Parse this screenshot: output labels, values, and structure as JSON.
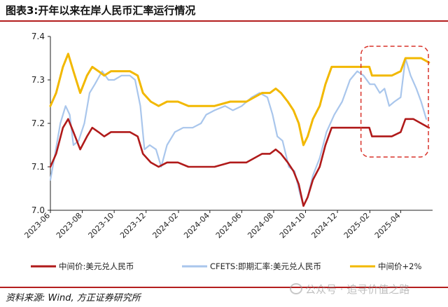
{
  "header": {
    "title": "图表3:开年以来在岸人民币汇率运行情况"
  },
  "footer": {
    "source": "资料来源: Wind, 方正证券研究所",
    "watermark": "公众号 · 追寻价值之路"
  },
  "colors": {
    "midpoint": "#b01a1a",
    "cfets": "#a9c6ec",
    "band": "#f2b800",
    "highlight": "#d9342b"
  },
  "chart_data": {
    "type": "line",
    "title": "",
    "xlabel": "",
    "ylabel": "",
    "ylim": [
      7.0,
      7.4
    ],
    "yticks": [
      "7.0",
      "7.1",
      "7.2",
      "7.3",
      "7.4"
    ],
    "xticks": [
      "2023-06",
      "2023-08",
      "2023-10",
      "2023-12",
      "2024-02",
      "2024-04",
      "2024-06",
      "2024-08",
      "2024-10",
      "2024-12",
      "2025-02",
      "2025-04"
    ],
    "grid": false,
    "legend_position": "bottom",
    "highlight_box": {
      "x_range": [
        "2025-01",
        "2025-06"
      ],
      "style": "dashed"
    },
    "series": [
      {
        "name": "中间价:美元兑人民币",
        "color": "#b01a1a",
        "points": [
          [
            "2023-06-01",
            7.1
          ],
          [
            "2023-06-12",
            7.13
          ],
          [
            "2023-06-25",
            7.19
          ],
          [
            "2023-07-05",
            7.21
          ],
          [
            "2023-07-15",
            7.18
          ],
          [
            "2023-07-28",
            7.14
          ],
          [
            "2023-08-10",
            7.17
          ],
          [
            "2023-08-20",
            7.19
          ],
          [
            "2023-09-01",
            7.18
          ],
          [
            "2023-09-12",
            7.17
          ],
          [
            "2023-09-25",
            7.18
          ],
          [
            "2023-10-10",
            7.18
          ],
          [
            "2023-10-31",
            7.18
          ],
          [
            "2023-11-15",
            7.17
          ],
          [
            "2023-11-25",
            7.13
          ],
          [
            "2023-12-10",
            7.11
          ],
          [
            "2023-12-25",
            7.1
          ],
          [
            "2024-01-10",
            7.11
          ],
          [
            "2024-01-31",
            7.11
          ],
          [
            "2024-02-20",
            7.1
          ],
          [
            "2024-03-15",
            7.1
          ],
          [
            "2024-04-10",
            7.1
          ],
          [
            "2024-05-10",
            7.11
          ],
          [
            "2024-06-10",
            7.11
          ],
          [
            "2024-07-10",
            7.13
          ],
          [
            "2024-07-25",
            7.13
          ],
          [
            "2024-08-05",
            7.14
          ],
          [
            "2024-08-15",
            7.13
          ],
          [
            "2024-08-28",
            7.11
          ],
          [
            "2024-09-08",
            7.09
          ],
          [
            "2024-09-18",
            7.06
          ],
          [
            "2024-09-27",
            7.01
          ],
          [
            "2024-10-05",
            7.03
          ],
          [
            "2024-10-15",
            7.07
          ],
          [
            "2024-10-28",
            7.1
          ],
          [
            "2024-11-08",
            7.15
          ],
          [
            "2024-11-20",
            7.19
          ],
          [
            "2024-12-05",
            7.19
          ],
          [
            "2024-12-20",
            7.19
          ],
          [
            "2025-01-10",
            7.19
          ],
          [
            "2025-01-31",
            7.19
          ],
          [
            "2025-02-05",
            7.17
          ],
          [
            "2025-02-25",
            7.17
          ],
          [
            "2025-03-15",
            7.17
          ],
          [
            "2025-04-01",
            7.18
          ],
          [
            "2025-04-10",
            7.21
          ],
          [
            "2025-04-25",
            7.21
          ],
          [
            "2025-05-10",
            7.2
          ],
          [
            "2025-05-25",
            7.19
          ]
        ]
      },
      {
        "name": "CFETS:即期汇率:美元兑人民币",
        "color": "#a9c6ec",
        "points": [
          [
            "2023-06-01",
            7.07
          ],
          [
            "2023-06-10",
            7.13
          ],
          [
            "2023-06-20",
            7.2
          ],
          [
            "2023-06-30",
            7.24
          ],
          [
            "2023-07-08",
            7.22
          ],
          [
            "2023-07-15",
            7.15
          ],
          [
            "2023-07-25",
            7.16
          ],
          [
            "2023-08-05",
            7.2
          ],
          [
            "2023-08-15",
            7.27
          ],
          [
            "2023-08-25",
            7.29
          ],
          [
            "2023-09-08",
            7.32
          ],
          [
            "2023-09-20",
            7.3
          ],
          [
            "2023-10-01",
            7.3
          ],
          [
            "2023-10-15",
            7.31
          ],
          [
            "2023-10-31",
            7.31
          ],
          [
            "2023-11-10",
            7.3
          ],
          [
            "2023-11-20",
            7.24
          ],
          [
            "2023-11-28",
            7.14
          ],
          [
            "2023-12-08",
            7.15
          ],
          [
            "2023-12-20",
            7.14
          ],
          [
            "2023-12-30",
            7.1
          ],
          [
            "2024-01-10",
            7.15
          ],
          [
            "2024-01-25",
            7.18
          ],
          [
            "2024-02-10",
            7.19
          ],
          [
            "2024-02-28",
            7.19
          ],
          [
            "2024-03-15",
            7.2
          ],
          [
            "2024-03-25",
            7.22
          ],
          [
            "2024-04-10",
            7.23
          ],
          [
            "2024-04-30",
            7.24
          ],
          [
            "2024-05-15",
            7.23
          ],
          [
            "2024-06-01",
            7.24
          ],
          [
            "2024-06-20",
            7.26
          ],
          [
            "2024-07-05",
            7.27
          ],
          [
            "2024-07-20",
            7.26
          ],
          [
            "2024-07-30",
            7.22
          ],
          [
            "2024-08-08",
            7.17
          ],
          [
            "2024-08-18",
            7.16
          ],
          [
            "2024-08-30",
            7.1
          ],
          [
            "2024-09-10",
            7.09
          ],
          [
            "2024-09-20",
            7.04
          ],
          [
            "2024-09-27",
            7.01
          ],
          [
            "2024-10-05",
            7.03
          ],
          [
            "2024-10-15",
            7.08
          ],
          [
            "2024-10-28",
            7.12
          ],
          [
            "2024-11-10",
            7.18
          ],
          [
            "2024-11-25",
            7.22
          ],
          [
            "2024-12-10",
            7.25
          ],
          [
            "2024-12-25",
            7.3
          ],
          [
            "2025-01-08",
            7.32
          ],
          [
            "2025-01-20",
            7.31
          ],
          [
            "2025-02-01",
            7.29
          ],
          [
            "2025-02-10",
            7.29
          ],
          [
            "2025-02-20",
            7.27
          ],
          [
            "2025-03-01",
            7.28
          ],
          [
            "2025-03-10",
            7.24
          ],
          [
            "2025-03-20",
            7.25
          ],
          [
            "2025-04-01",
            7.26
          ],
          [
            "2025-04-10",
            7.35
          ],
          [
            "2025-04-20",
            7.31
          ],
          [
            "2025-05-01",
            7.28
          ],
          [
            "2025-05-10",
            7.25
          ],
          [
            "2025-05-20",
            7.21
          ]
        ]
      },
      {
        "name": "中间价+2%",
        "color": "#f2b800",
        "points": [
          [
            "2023-06-01",
            7.24
          ],
          [
            "2023-06-12",
            7.27
          ],
          [
            "2023-06-25",
            7.33
          ],
          [
            "2023-07-05",
            7.36
          ],
          [
            "2023-07-15",
            7.32
          ],
          [
            "2023-07-28",
            7.27
          ],
          [
            "2023-08-10",
            7.31
          ],
          [
            "2023-08-20",
            7.33
          ],
          [
            "2023-09-01",
            7.32
          ],
          [
            "2023-09-12",
            7.31
          ],
          [
            "2023-09-25",
            7.32
          ],
          [
            "2023-10-10",
            7.32
          ],
          [
            "2023-10-31",
            7.32
          ],
          [
            "2023-11-15",
            7.31
          ],
          [
            "2023-11-25",
            7.27
          ],
          [
            "2023-12-10",
            7.25
          ],
          [
            "2023-12-25",
            7.24
          ],
          [
            "2024-01-10",
            7.25
          ],
          [
            "2024-01-31",
            7.25
          ],
          [
            "2024-02-20",
            7.24
          ],
          [
            "2024-03-15",
            7.24
          ],
          [
            "2024-04-10",
            7.24
          ],
          [
            "2024-05-10",
            7.25
          ],
          [
            "2024-06-10",
            7.25
          ],
          [
            "2024-07-10",
            7.27
          ],
          [
            "2024-07-25",
            7.27
          ],
          [
            "2024-08-05",
            7.28
          ],
          [
            "2024-08-15",
            7.27
          ],
          [
            "2024-08-28",
            7.25
          ],
          [
            "2024-09-08",
            7.23
          ],
          [
            "2024-09-18",
            7.2
          ],
          [
            "2024-09-27",
            7.15
          ],
          [
            "2024-10-05",
            7.17
          ],
          [
            "2024-10-15",
            7.21
          ],
          [
            "2024-10-28",
            7.24
          ],
          [
            "2024-11-08",
            7.29
          ],
          [
            "2024-11-20",
            7.33
          ],
          [
            "2024-12-05",
            7.33
          ],
          [
            "2024-12-20",
            7.33
          ],
          [
            "2025-01-10",
            7.33
          ],
          [
            "2025-01-31",
            7.33
          ],
          [
            "2025-02-05",
            7.31
          ],
          [
            "2025-02-25",
            7.31
          ],
          [
            "2025-03-15",
            7.31
          ],
          [
            "2025-04-01",
            7.32
          ],
          [
            "2025-04-10",
            7.35
          ],
          [
            "2025-04-25",
            7.35
          ],
          [
            "2025-05-10",
            7.35
          ],
          [
            "2025-05-25",
            7.34
          ]
        ]
      }
    ]
  }
}
